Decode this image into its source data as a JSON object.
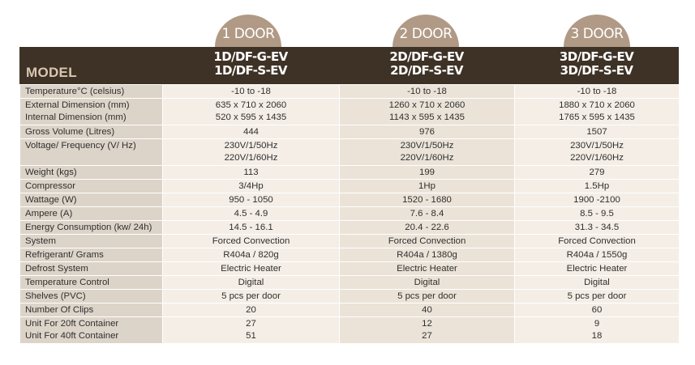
{
  "columns": [
    {
      "door": "1 DOOR",
      "model_1": "1D/DF-G-EV",
      "model_2": "1D/DF-S-EV"
    },
    {
      "door": "2 DOOR",
      "model_1": "2D/DF-G-EV",
      "model_2": "2D/DF-S-EV"
    },
    {
      "door": "3 DOOR",
      "model_1": "3D/DF-G-EV",
      "model_2": "3D/DF-S-EV"
    }
  ],
  "model_label": "MODEL",
  "rows": [
    {
      "label": "Temperature°C (celsius)",
      "values": [
        "-10 to -18",
        "-10 to -18",
        "-10 to -18"
      ]
    },
    {
      "label": "External Dimension (mm)",
      "label2": "Internal Dimension (mm)",
      "values": [
        "635 x 710 x 2060",
        "1260 x 710 x 2060",
        "1880 x 710 x 2060"
      ],
      "values2": [
        "520 x 595 x 1435",
        "1143 x 595 x 1435",
        "1765 x 595 x 1435"
      ]
    },
    {
      "label": "Gross Volume (Litres)",
      "values": [
        "444",
        "976",
        "1507"
      ]
    },
    {
      "label": "Voltage/ Frequency (V/ Hz)",
      "label2": "",
      "values": [
        "230V/1/50Hz",
        "230V/1/50Hz",
        "230V/1/50Hz"
      ],
      "values2": [
        "220V/1/60Hz",
        "220V/1/60Hz",
        "220V/1/60Hz"
      ]
    },
    {
      "label": "Weight (kgs)",
      "values": [
        "113",
        "199",
        "279"
      ]
    },
    {
      "label": "Compressor",
      "values": [
        "3/4Hp",
        "1Hp",
        "1.5Hp"
      ]
    },
    {
      "label": "Wattage (W)",
      "values": [
        "950 - 1050",
        "1520 - 1680",
        "1900 -2100"
      ]
    },
    {
      "label": "Ampere (A)",
      "values": [
        "4.5 - 4.9",
        "7.6 - 8.4",
        "8.5 - 9.5"
      ]
    },
    {
      "label": "Energy Consumption (kw/ 24h)",
      "values": [
        "14.5 - 16.1",
        "20.4 - 22.6",
        "31.3 - 34.5"
      ]
    },
    {
      "label": "System",
      "values": [
        "Forced Convection",
        "Forced Convection",
        "Forced Convection"
      ]
    },
    {
      "label": "Refrigerant/ Grams",
      "values": [
        "R404a / 820g",
        "R404a / 1380g",
        "R404a / 1550g"
      ]
    },
    {
      "label": "Defrost System",
      "values": [
        "Electric Heater",
        "Electric Heater",
        "Electric Heater"
      ]
    },
    {
      "label": "Temperature Control",
      "values": [
        "Digital",
        "Digital",
        "Digital"
      ]
    },
    {
      "label": "Shelves (PVC)",
      "values": [
        "5 pcs per door",
        "5 pcs per door",
        "5 pcs per door"
      ]
    },
    {
      "label": "Number Of Clips",
      "values": [
        "20",
        "40",
        "60"
      ]
    },
    {
      "label": "Unit For 20ft Container",
      "label2": "Unit For 40ft Container",
      "values": [
        "27",
        "12",
        "9"
      ],
      "values2": [
        "51",
        "27",
        "18"
      ]
    }
  ]
}
